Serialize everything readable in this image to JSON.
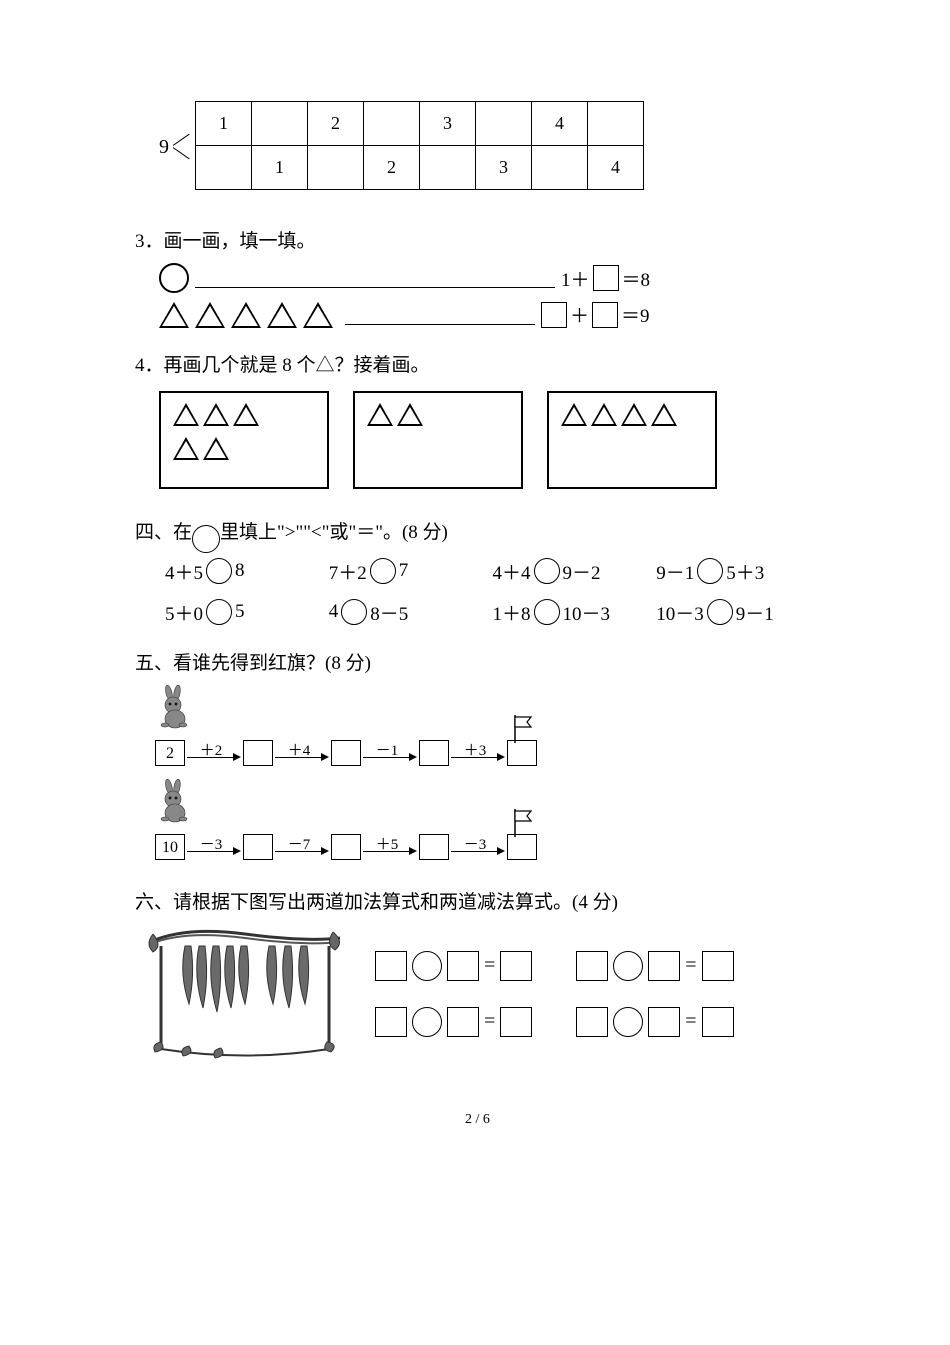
{
  "q2": {
    "left_label": "9",
    "row1": [
      "1",
      "",
      "2",
      "",
      "3",
      "",
      "4",
      ""
    ],
    "row2": [
      "",
      "1",
      "",
      "2",
      "",
      "3",
      "",
      "4"
    ]
  },
  "q3": {
    "title": "3．画一画，填一填。",
    "eq1_prefix": "1＋",
    "eq1_suffix": "＝8",
    "eq2_mid": "＋",
    "eq2_suffix": "＝9"
  },
  "q4": {
    "title": "4．再画几个就是 8 个△？接着画。",
    "box1_row1": 3,
    "box1_row2": 2,
    "box2_row1": 2,
    "box3_row1": 4
  },
  "sec4": {
    "title_pre": "四、在",
    "title_post": "里填上\">\"\"<\"或\"＝\"。(8 分)",
    "items": [
      {
        "l": "4＋5",
        "r": "8"
      },
      {
        "l": "7＋2",
        "r": "7"
      },
      {
        "l": "4＋4",
        "r": "9－2"
      },
      {
        "l": "9－1",
        "r": "5＋3"
      },
      {
        "l": "5＋0",
        "r": "5"
      },
      {
        "l": "4",
        "r": "8－5"
      },
      {
        "l": "1＋8",
        "r": "10－3"
      },
      {
        "l": "10－3",
        "r": "9－1"
      }
    ]
  },
  "sec5": {
    "title": "五、看谁先得到红旗？(8 分)",
    "row1": {
      "start": "2",
      "ops": [
        "＋2",
        "＋4",
        "－1",
        "＋3"
      ]
    },
    "row2": {
      "start": "10",
      "ops": [
        "－3",
        "－7",
        "＋5",
        "－3"
      ]
    }
  },
  "sec6": {
    "title": "六、请根据下图写出两道加法算式和两道减法算式。(4 分)",
    "eq_sign": "="
  },
  "footer": "2 / 6"
}
